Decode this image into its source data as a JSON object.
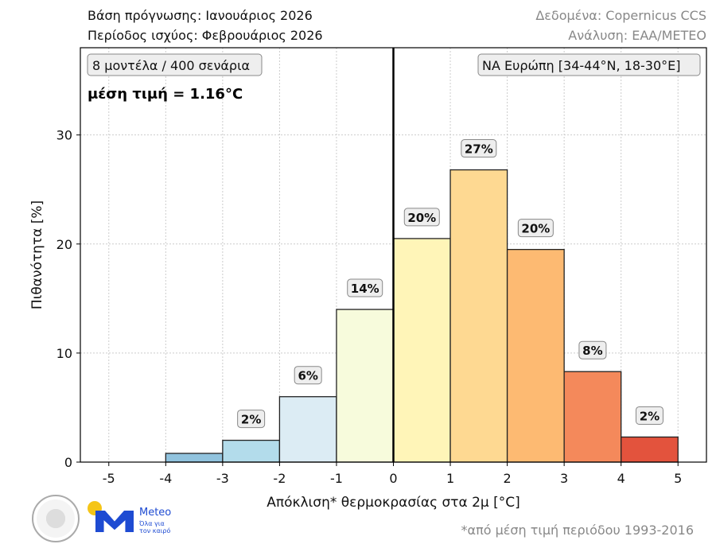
{
  "header": {
    "base": "Βάση πρόγνωσης: Ιανουάριος 2026",
    "period": "Περίοδος ισχύος: Φεβρουάριος 2026",
    "source": "Δεδομένα: Copernicus CCS",
    "analysis": "Ανάλυση: ΕΑΑ/METEO"
  },
  "footnote": "*από μέση τιμή περιόδου 1993-2016",
  "logos": {
    "meteo_name": "Meteo",
    "meteo_tagline": "Όλα για τον καιρό"
  },
  "chart_data": {
    "type": "bar",
    "xlabel": "Απόκλιση* θερμοκρασίας στα 2μ [°C]",
    "ylabel": "Πιθανότητα [%]",
    "xlim": [
      -5.5,
      5.5
    ],
    "ylim": [
      0,
      38
    ],
    "xticks": [
      "-5",
      "-4",
      "-3",
      "-2",
      "-1",
      "0",
      "1",
      "2",
      "3",
      "4",
      "5"
    ],
    "yticks": [
      "0",
      "10",
      "20",
      "30"
    ],
    "grid": true,
    "bins": [
      [
        -5,
        -4
      ],
      [
        -4,
        -3
      ],
      [
        -3,
        -2
      ],
      [
        -2,
        -1
      ],
      [
        -1,
        0
      ],
      [
        0,
        1
      ],
      [
        1,
        2
      ],
      [
        2,
        3
      ],
      [
        3,
        4
      ],
      [
        4,
        5
      ]
    ],
    "values": [
      0,
      0.8,
      2.0,
      6.0,
      14.0,
      20.5,
      26.8,
      19.5,
      8.3,
      2.3
    ],
    "labels": [
      "",
      "",
      "2%",
      "6%",
      "14%",
      "20%",
      "27%",
      "20%",
      "8%",
      "2%"
    ],
    "colors": [
      "#4575b4",
      "#91c3de",
      "#b3dceb",
      "#dcecf4",
      "#f7fbdc",
      "#fff5b8",
      "#fed992",
      "#fdba72",
      "#f4895b",
      "#e3533d"
    ],
    "zero_line": 0,
    "annotations": {
      "models": "8 μοντέλα / 400 σενάρια",
      "mean": "μέση τιμή = 1.16°C",
      "region": "ΝΑ Ευρώπη [34-44°N, 18-30°E]"
    }
  }
}
